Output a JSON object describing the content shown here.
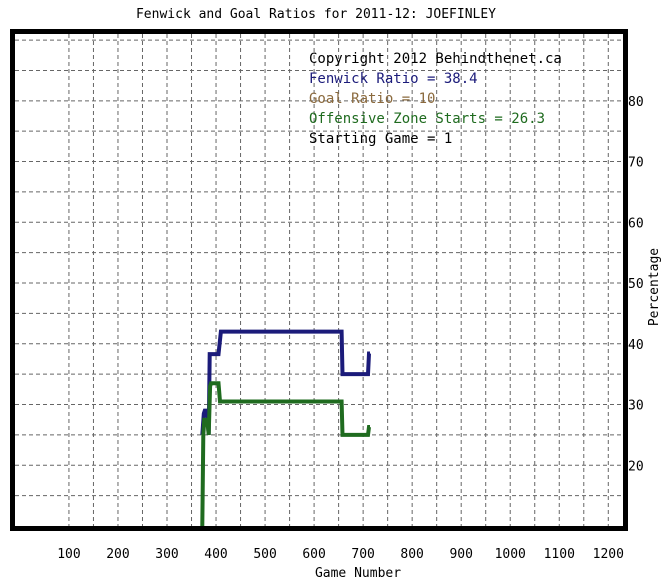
{
  "chart_data": {
    "type": "line",
    "title": "Fenwick and Goal Ratios for 2011-12: JOEFINLEY",
    "xlabel": "Game Number",
    "ylabel": "Percentage",
    "xlim": [
      -10,
      1230
    ],
    "ylim": [
      10,
      91
    ],
    "xticks": [
      "100",
      "200",
      "300",
      "400",
      "500",
      "600",
      "700",
      "800",
      "900",
      "1000",
      "1100",
      "1200"
    ],
    "yticks": [
      "20",
      "30",
      "40",
      "50",
      "60",
      "70",
      "80"
    ],
    "grid": true,
    "legend_position": "top-right",
    "legend": [
      {
        "text": "Copyright 2012 Behindthenet.ca",
        "color": "#000000"
      },
      {
        "text": "Fenwick Ratio = 38.4",
        "color": "#1b1b7a"
      },
      {
        "text": "Goal Ratio = 10",
        "color": "#8b6a3e"
      },
      {
        "text": "Offensive Zone Starts = 26.3",
        "color": "#1f6b1f"
      },
      {
        "text": "Starting Game = 1",
        "color": "#000000"
      }
    ],
    "series": [
      {
        "color": "#1b1b7a",
        "x": [
          372,
          375,
          377,
          382,
          385,
          387,
          388,
          392,
          398,
          405,
          410,
          412,
          420,
          450,
          500,
          550,
          600,
          650,
          656,
          658,
          662,
          670,
          690,
          710,
          712,
          714
        ],
        "y": [
          25.0,
          28.5,
          29.0,
          29.0,
          25.0,
          38.3,
          38.3,
          38.3,
          38.3,
          38.3,
          42.0,
          42.0,
          42.0,
          42.0,
          42.0,
          42.0,
          42.0,
          42.0,
          42.0,
          35.0,
          35.0,
          35.0,
          35.0,
          35.0,
          38.4,
          38.4
        ]
      },
      {
        "color": "#1f6b1f",
        "x": [
          372,
          374,
          376,
          382,
          385,
          388,
          390,
          392,
          405,
          408,
          410,
          412,
          420,
          450,
          500,
          550,
          600,
          650,
          656,
          658,
          662,
          670,
          690,
          710,
          712,
          714
        ],
        "y": [
          10.0,
          25.0,
          27.5,
          27.5,
          25.0,
          33.0,
          33.5,
          33.5,
          33.5,
          30.5,
          30.5,
          30.5,
          30.5,
          30.5,
          30.5,
          30.5,
          30.5,
          30.5,
          30.5,
          25.0,
          25.0,
          25.0,
          25.0,
          25.0,
          26.3,
          26.3
        ]
      }
    ]
  }
}
